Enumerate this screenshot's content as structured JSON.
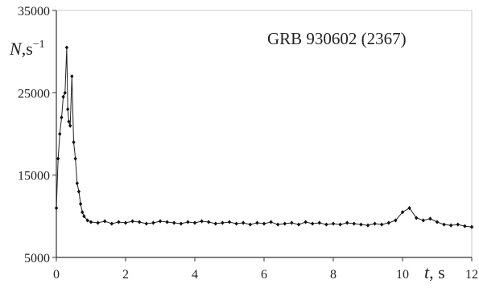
{
  "chart_data": {
    "type": "line",
    "title": "GRB 930602 (2367)",
    "ylabel": {
      "var": "N",
      "unit": ",s",
      "exp": "−1"
    },
    "xlabel": {
      "var": "t",
      "unit": ", s"
    },
    "xlim": [
      0,
      12
    ],
    "ylim": [
      5000,
      35000
    ],
    "x_ticks": [
      "0",
      "2",
      "4",
      "6",
      "8",
      "10",
      "12"
    ],
    "y_ticks": [
      "5000",
      "15000",
      "25000",
      "35000"
    ],
    "grid": false,
    "series": [
      {
        "marker": "diamond",
        "x": [
          0.0,
          0.05,
          0.1,
          0.15,
          0.2,
          0.25,
          0.3,
          0.33,
          0.36,
          0.4,
          0.45,
          0.5,
          0.55,
          0.6,
          0.65,
          0.7,
          0.75,
          0.8,
          0.9,
          1.0,
          1.2,
          1.4,
          1.6,
          1.8,
          2.0,
          2.2,
          2.4,
          2.6,
          2.8,
          3.0,
          3.2,
          3.4,
          3.6,
          3.8,
          4.0,
          4.2,
          4.4,
          4.6,
          4.8,
          5.0,
          5.2,
          5.4,
          5.6,
          5.8,
          6.0,
          6.2,
          6.4,
          6.6,
          6.8,
          7.0,
          7.2,
          7.4,
          7.6,
          7.8,
          8.0,
          8.2,
          8.4,
          8.6,
          8.8,
          9.0,
          9.2,
          9.4,
          9.6,
          9.8,
          10.0,
          10.2,
          10.4,
          10.6,
          10.8,
          11.0,
          11.2,
          11.4,
          11.6,
          11.8,
          12.0
        ],
        "y": [
          11000,
          17000,
          20000,
          22000,
          24500,
          25000,
          30500,
          23000,
          21500,
          21000,
          27000,
          19000,
          17000,
          14000,
          13000,
          11500,
          10500,
          10000,
          9500,
          9300,
          9200,
          9400,
          9100,
          9300,
          9200,
          9400,
          9300,
          9100,
          9200,
          9400,
          9300,
          9200,
          9100,
          9300,
          9200,
          9400,
          9300,
          9100,
          9200,
          9300,
          9100,
          9200,
          9000,
          9200,
          9100,
          9300,
          9000,
          9100,
          9200,
          9000,
          9300,
          9100,
          9200,
          9000,
          9100,
          9000,
          9200,
          9100,
          9000,
          8900,
          9100,
          9000,
          9200,
          9500,
          10500,
          11000,
          9800,
          9500,
          9700,
          9300,
          9000,
          8900,
          9000,
          8800,
          8700
        ]
      }
    ]
  }
}
